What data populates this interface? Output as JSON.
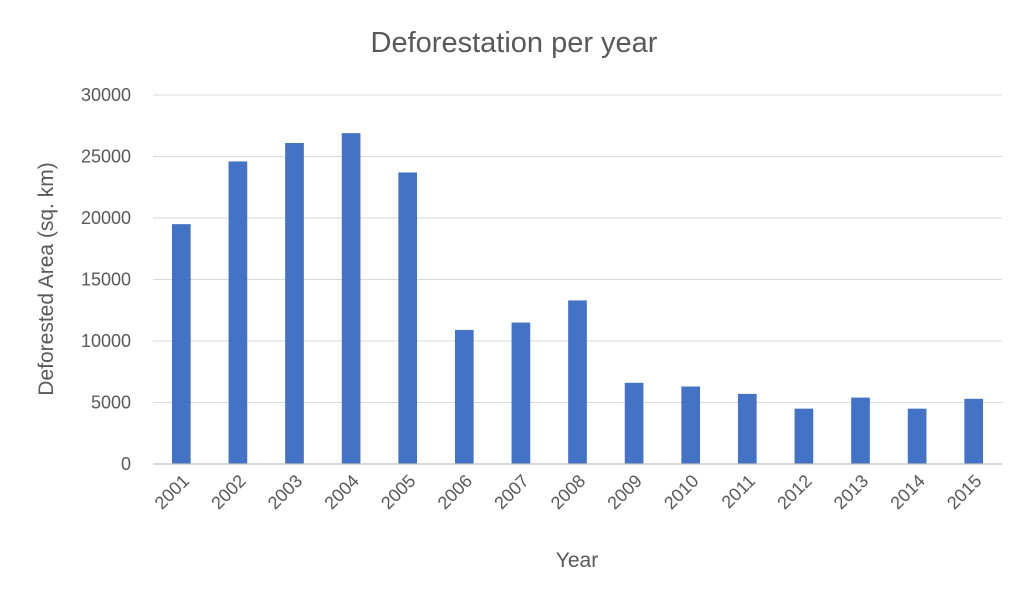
{
  "chart_data": {
    "type": "bar",
    "title": "Deforestation per year",
    "xlabel": "Year",
    "ylabel": "Deforested Area (sq. km)",
    "categories": [
      "2001",
      "2002",
      "2003",
      "2004",
      "2005",
      "2006",
      "2007",
      "2008",
      "2009",
      "2010",
      "2011",
      "2012",
      "2013",
      "2014",
      "2015"
    ],
    "values": [
      19500,
      24600,
      26100,
      26900,
      23700,
      10900,
      11500,
      13300,
      6600,
      6300,
      5700,
      4500,
      5400,
      4500,
      5300
    ],
    "yticks": [
      "0",
      "5000",
      "10000",
      "15000",
      "20000",
      "25000",
      "30000"
    ],
    "ylim": [
      0,
      30000
    ],
    "grid": true,
    "legend": "none",
    "bar_color": "#4472c4"
  }
}
